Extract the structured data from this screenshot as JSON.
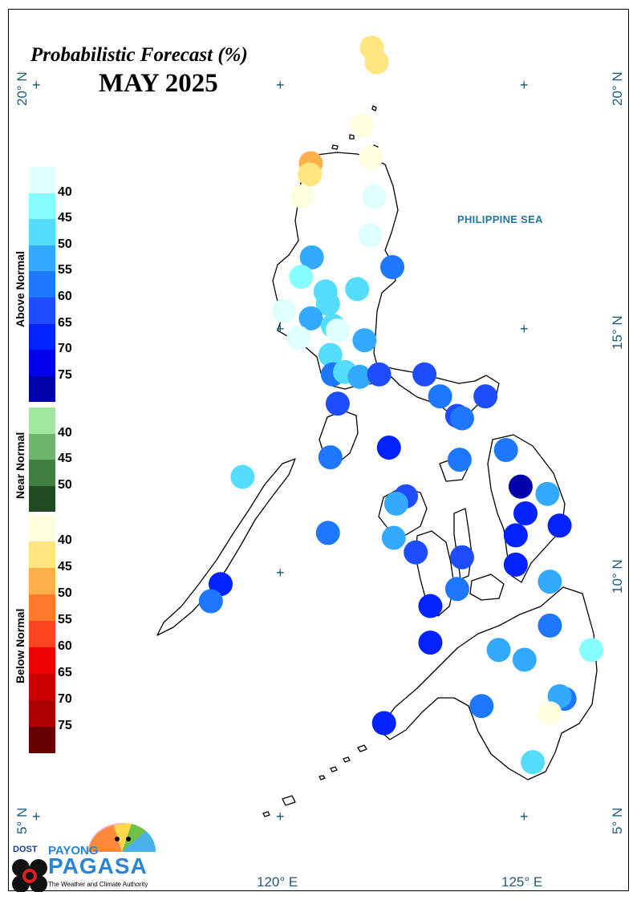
{
  "title": "Probabilistic Forecast (%)",
  "subtitle": "MAY 2025",
  "sea_label": "PHILIPPINE SEA",
  "lat_labels": [
    {
      "text": "20° N"
    },
    {
      "text": "15° N"
    },
    {
      "text": "10° N"
    },
    {
      "text": "5° N"
    }
  ],
  "lon_labels": [
    {
      "text": "120° E"
    },
    {
      "text": "125° E"
    }
  ],
  "legend": {
    "above": {
      "title": "Above Normal",
      "levels": [
        "40",
        "45",
        "50",
        "55",
        "60",
        "65",
        "70",
        "75"
      ],
      "colors": [
        "#e0ffff",
        "#88ffff",
        "#55ddff",
        "#33aaff",
        "#1e78ff",
        "#1e4dff",
        "#0022ff",
        "#0000ee",
        "#0000aa"
      ]
    },
    "near": {
      "title": "Near Normal",
      "levels": [
        "40",
        "45",
        "50"
      ],
      "colors": [
        "#a0e8a0",
        "#6db56d",
        "#3f7f3f",
        "#1f4a1f"
      ]
    },
    "below": {
      "title": "Below Normal",
      "levels": [
        "40",
        "45",
        "50",
        "55",
        "60",
        "65",
        "70",
        "75"
      ],
      "colors": [
        "#ffffe0",
        "#ffe680",
        "#ffb04a",
        "#ff7a2a",
        "#ff4422",
        "#ee0000",
        "#cc0000",
        "#aa0000",
        "#660000"
      ]
    }
  },
  "stations": [
    {
      "lon": 121.85,
      "lat": 20.75,
      "color": "#ffe680"
    },
    {
      "lon": 121.95,
      "lat": 20.45,
      "color": "#ffe680"
    },
    {
      "lon": 121.65,
      "lat": 19.15,
      "color": "#ffffe0"
    },
    {
      "lon": 121.83,
      "lat": 18.5,
      "color": "#ffffe0"
    },
    {
      "lon": 120.6,
      "lat": 18.38,
      "color": "#ffb04a"
    },
    {
      "lon": 120.58,
      "lat": 18.15,
      "color": "#ffe680"
    },
    {
      "lon": 121.9,
      "lat": 17.7,
      "color": "#e0ffff"
    },
    {
      "lon": 120.42,
      "lat": 17.7,
      "color": "#ffffe0"
    },
    {
      "lon": 121.82,
      "lat": 16.9,
      "color": "#e0ffff"
    },
    {
      "lon": 122.27,
      "lat": 16.25,
      "color": "#1e78ff"
    },
    {
      "lon": 120.62,
      "lat": 16.45,
      "color": "#33aaff"
    },
    {
      "lon": 120.4,
      "lat": 16.05,
      "color": "#88ffff"
    },
    {
      "lon": 120.9,
      "lat": 15.75,
      "color": "#55ddff"
    },
    {
      "lon": 121.55,
      "lat": 15.8,
      "color": "#55ddff"
    },
    {
      "lon": 120.95,
      "lat": 15.5,
      "color": "#55ddff"
    },
    {
      "lon": 120.05,
      "lat": 15.35,
      "color": "#e0ffff"
    },
    {
      "lon": 120.6,
      "lat": 15.2,
      "color": "#33aaff"
    },
    {
      "lon": 121.05,
      "lat": 15.05,
      "color": "#55ddff"
    },
    {
      "lon": 121.15,
      "lat": 14.95,
      "color": "#e0ffff"
    },
    {
      "lon": 120.35,
      "lat": 14.8,
      "color": "#e0ffff"
    },
    {
      "lon": 121.7,
      "lat": 14.75,
      "color": "#33aaff"
    },
    {
      "lon": 121.0,
      "lat": 14.45,
      "color": "#55ddff"
    },
    {
      "lon": 121.05,
      "lat": 14.05,
      "color": "#1e78ff"
    },
    {
      "lon": 121.3,
      "lat": 14.1,
      "color": "#55ddff"
    },
    {
      "lon": 121.6,
      "lat": 14.0,
      "color": "#33aaff"
    },
    {
      "lon": 122.0,
      "lat": 14.05,
      "color": "#1e4dff"
    },
    {
      "lon": 122.93,
      "lat": 14.05,
      "color": "#1e4dff"
    },
    {
      "lon": 123.25,
      "lat": 13.6,
      "color": "#1e78ff"
    },
    {
      "lon": 124.18,
      "lat": 13.6,
      "color": "#1e4dff"
    },
    {
      "lon": 121.15,
      "lat": 13.45,
      "color": "#1e4dff"
    },
    {
      "lon": 123.6,
      "lat": 13.2,
      "color": "#1e4dff"
    },
    {
      "lon": 123.7,
      "lat": 13.15,
      "color": "#1e78ff"
    },
    {
      "lon": 122.2,
      "lat": 12.55,
      "color": "#0022ff"
    },
    {
      "lon": 124.6,
      "lat": 12.5,
      "color": "#1e78ff"
    },
    {
      "lon": 121.0,
      "lat": 12.35,
      "color": "#1e78ff"
    },
    {
      "lon": 123.65,
      "lat": 12.3,
      "color": "#1e78ff"
    },
    {
      "lon": 119.2,
      "lat": 11.95,
      "color": "#55ddff"
    },
    {
      "lon": 124.9,
      "lat": 11.75,
      "color": "#0000aa"
    },
    {
      "lon": 125.45,
      "lat": 11.6,
      "color": "#33aaff"
    },
    {
      "lon": 122.55,
      "lat": 11.55,
      "color": "#1e4dff"
    },
    {
      "lon": 122.35,
      "lat": 11.4,
      "color": "#33aaff"
    },
    {
      "lon": 125.0,
      "lat": 11.2,
      "color": "#0022ff"
    },
    {
      "lon": 125.7,
      "lat": 10.95,
      "color": "#0022ff"
    },
    {
      "lon": 120.95,
      "lat": 10.8,
      "color": "#1e78ff"
    },
    {
      "lon": 124.8,
      "lat": 10.75,
      "color": "#0022ff"
    },
    {
      "lon": 122.3,
      "lat": 10.7,
      "color": "#33aaff"
    },
    {
      "lon": 122.75,
      "lat": 10.4,
      "color": "#1e4dff"
    },
    {
      "lon": 123.7,
      "lat": 10.3,
      "color": "#1e4dff"
    },
    {
      "lon": 124.8,
      "lat": 10.15,
      "color": "#0022ff"
    },
    {
      "lon": 118.75,
      "lat": 9.75,
      "color": "#0022ff"
    },
    {
      "lon": 125.5,
      "lat": 9.8,
      "color": "#33aaff"
    },
    {
      "lon": 123.6,
      "lat": 9.65,
      "color": "#1e78ff"
    },
    {
      "lon": 118.55,
      "lat": 9.4,
      "color": "#1e78ff"
    },
    {
      "lon": 123.05,
      "lat": 9.3,
      "color": "#0022ff"
    },
    {
      "lon": 125.5,
      "lat": 8.9,
      "color": "#1e78ff"
    },
    {
      "lon": 123.05,
      "lat": 8.55,
      "color": "#0022ff"
    },
    {
      "lon": 124.45,
      "lat": 8.4,
      "color": "#33aaff"
    },
    {
      "lon": 126.35,
      "lat": 8.4,
      "color": "#88ffff"
    },
    {
      "lon": 124.98,
      "lat": 8.2,
      "color": "#33aaff"
    },
    {
      "lon": 125.8,
      "lat": 7.4,
      "color": "#1e78ff"
    },
    {
      "lon": 125.7,
      "lat": 7.45,
      "color": "#33aaff"
    },
    {
      "lon": 124.1,
      "lat": 7.25,
      "color": "#1e78ff"
    },
    {
      "lon": 125.5,
      "lat": 7.1,
      "color": "#ffffe0"
    },
    {
      "lon": 122.1,
      "lat": 6.9,
      "color": "#0022ff"
    },
    {
      "lon": 125.15,
      "lat": 6.1,
      "color": "#55ddff"
    }
  ],
  "logo": {
    "org1": "DOST",
    "org2": "PAYONG",
    "org3": "PAGASA",
    "tagline": "The Weather and Climate Authority"
  }
}
